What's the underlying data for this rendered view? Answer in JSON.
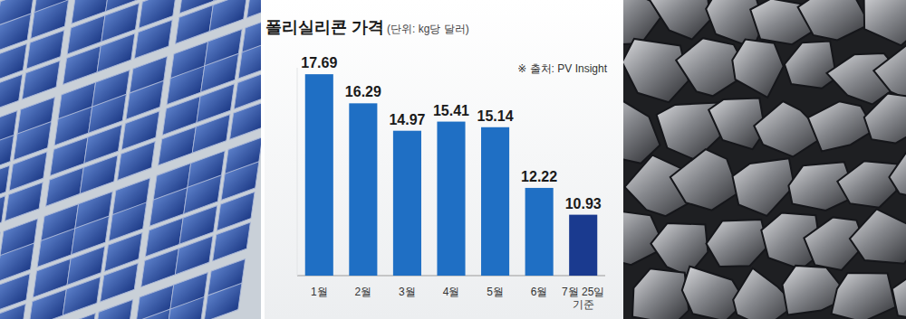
{
  "chart_data": {
    "type": "bar",
    "title": "폴리실리콘 가격",
    "subtitle": "(단위: kg당 달러)",
    "annotations": [
      "※ 출처: PV Insight"
    ],
    "categories": [
      "1월",
      "2월",
      "3월",
      "4월",
      "5월",
      "6월",
      "7월 25일 기준"
    ],
    "values": [
      17.69,
      16.29,
      14.97,
      15.41,
      15.14,
      12.22,
      10.93
    ],
    "colors": [
      "#1f6fc4",
      "#1f6fc4",
      "#1f6fc4",
      "#1f6fc4",
      "#1f6fc4",
      "#1f6fc4",
      "#1a3a8f"
    ],
    "ylim": [
      8,
      18
    ],
    "data_labels": true,
    "tick_labels": "x",
    "grid": false
  }
}
